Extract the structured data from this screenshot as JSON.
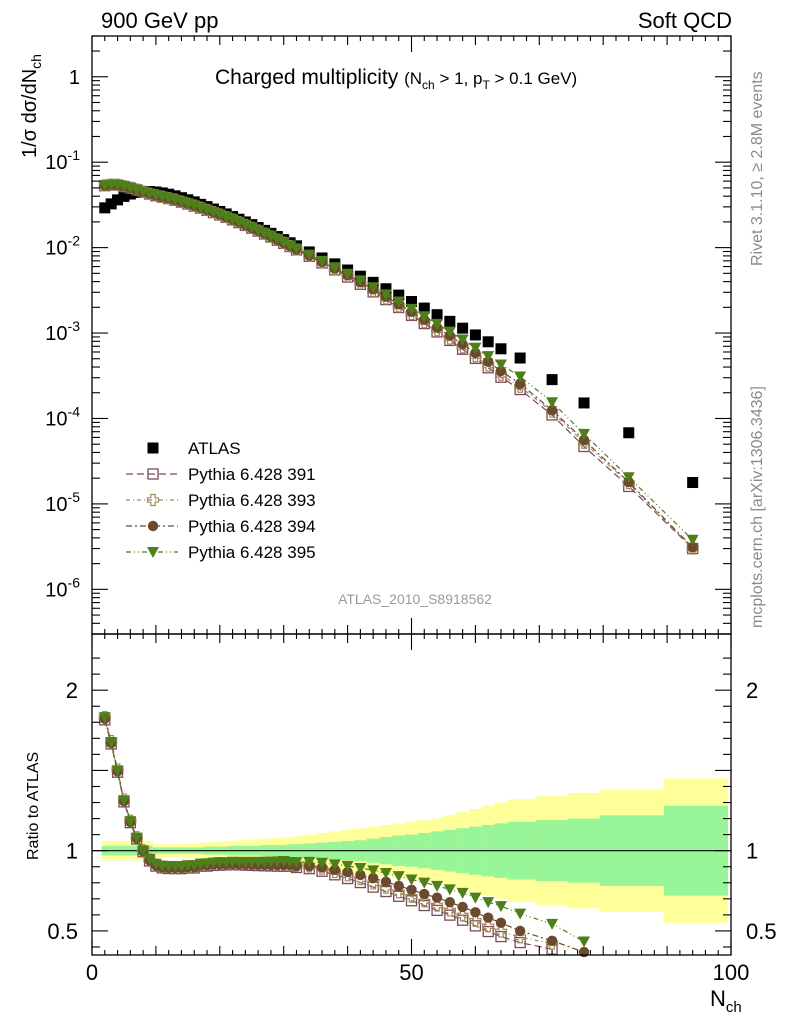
{
  "header": {
    "left_label": "900 GeV pp",
    "right_label": "Soft QCD"
  },
  "side_labels": {
    "top": "Rivet 3.1.10, ≥ 2.8M events",
    "bottom": "mcplots.cern.ch [arXiv:1306.3436]"
  },
  "chart_data": [
    {
      "type": "scatter",
      "panel": "main",
      "title": "Charged multiplicity",
      "title_detail": "(N_ch > 1, p_T > 0.1 GeV)",
      "xlabel": "N_ch",
      "ylabel": "1/σ dσ/dN_ch",
      "xlim": [
        0,
        100
      ],
      "ylim": [
        3e-07,
        3
      ],
      "yscale": "log",
      "y_tick_labels": [
        "10^-6",
        "10^-5",
        "10^-4",
        "10^-3",
        "10^-2",
        "10^-1",
        "1"
      ],
      "watermark": "ATLAS_2010_S8918562",
      "legend_position": "lower-left",
      "series": [
        {
          "name": "ATLAS",
          "marker": "filled-square",
          "color": "#000000",
          "x": [
            2,
            3,
            4,
            5,
            6,
            7,
            8,
            9,
            10,
            11,
            12,
            13,
            14,
            15,
            16,
            17,
            18,
            19,
            20,
            21,
            22,
            23,
            24,
            25,
            26,
            27,
            28,
            29,
            30,
            31,
            32,
            34,
            36,
            38,
            40,
            42,
            44,
            46,
            48,
            50,
            52,
            54,
            56,
            58,
            60,
            62,
            64,
            67,
            72,
            77,
            84,
            94
          ],
          "y": [
            0.0292,
            0.0325,
            0.0362,
            0.0398,
            0.0424,
            0.0442,
            0.0451,
            0.0453,
            0.0448,
            0.0437,
            0.0422,
            0.0404,
            0.0384,
            0.0363,
            0.0343,
            0.0321,
            0.0302,
            0.0283,
            0.0265,
            0.0248,
            0.0231,
            0.0215,
            0.02,
            0.0186,
            0.0172,
            0.0159,
            0.0147,
            0.0135,
            0.0124,
            0.0114,
            0.0105,
            0.0089,
            0.00757,
            0.00645,
            0.00547,
            0.00463,
            0.00392,
            0.0033,
            0.00278,
            0.00234,
            0.00196,
            0.00164,
            0.00137,
            0.00114,
            0.00095,
            0.00079,
            0.000654,
            0.00051,
            0.000285,
            0.000152,
            6.8e-05,
            1.78e-05
          ]
        },
        {
          "name": "Pythia 6.428 391",
          "marker": "open-square",
          "color": "#7b4a5a",
          "x": [
            2,
            3,
            4,
            5,
            6,
            7,
            8,
            9,
            10,
            11,
            12,
            13,
            14,
            15,
            16,
            17,
            18,
            19,
            20,
            21,
            22,
            23,
            24,
            25,
            26,
            27,
            28,
            29,
            30,
            31,
            32,
            34,
            36,
            38,
            40,
            42,
            44,
            46,
            48,
            50,
            52,
            54,
            56,
            58,
            60,
            62,
            64,
            67,
            72,
            77,
            84,
            94
          ],
          "y": [
            0.053,
            0.0541,
            0.0539,
            0.0519,
            0.0498,
            0.0474,
            0.0448,
            0.0424,
            0.0405,
            0.039,
            0.0375,
            0.0359,
            0.0341,
            0.0324,
            0.0306,
            0.029,
            0.0273,
            0.0257,
            0.0241,
            0.0226,
            0.0211,
            0.0196,
            0.0182,
            0.0169,
            0.0156,
            0.0144,
            0.0133,
            0.0122,
            0.0112,
            0.0103,
            0.0094,
            0.0079,
            0.0066,
            0.00548,
            0.00452,
            0.00371,
            0.00303,
            0.00246,
            0.00199,
            0.00161,
            0.00129,
            0.00103,
            0.00082,
            0.000646,
            0.000505,
            0.000392,
            0.000304,
            0.000218,
            0.00011,
            4.7e-05,
            1.6e-05,
            3e-06
          ]
        },
        {
          "name": "Pythia 6.428 393",
          "marker": "open-cross",
          "color": "#a08a55",
          "x": [
            2,
            3,
            4,
            5,
            6,
            7,
            8,
            9,
            10,
            11,
            12,
            13,
            14,
            15,
            16,
            17,
            18,
            19,
            20,
            21,
            22,
            23,
            24,
            25,
            26,
            27,
            28,
            29,
            30,
            31,
            32,
            34,
            36,
            38,
            40,
            42,
            44,
            46,
            48,
            50,
            52,
            54,
            56,
            58,
            60,
            62,
            64,
            67,
            72,
            77,
            84,
            94
          ],
          "y": [
            0.0535,
            0.0547,
            0.0545,
            0.0525,
            0.0503,
            0.0479,
            0.0452,
            0.0428,
            0.0409,
            0.0394,
            0.0379,
            0.0363,
            0.0345,
            0.0327,
            0.031,
            0.0293,
            0.0276,
            0.026,
            0.0244,
            0.0228,
            0.0213,
            0.0198,
            0.0184,
            0.0171,
            0.0158,
            0.0146,
            0.0135,
            0.0124,
            0.0114,
            0.0104,
            0.00952,
            0.00803,
            0.00672,
            0.00559,
            0.00463,
            0.00381,
            0.00312,
            0.00254,
            0.00206,
            0.00167,
            0.00134,
            0.00108,
            0.00086,
            0.00068,
            0.000535,
            0.000418,
            0.000325,
            0.000235,
            0.00012,
            5.2e-05,
            1.75e-05,
            3e-06
          ]
        },
        {
          "name": "Pythia 6.428 394",
          "marker": "filled-circle",
          "color": "#6b4a2f",
          "x": [
            2,
            3,
            4,
            5,
            6,
            7,
            8,
            9,
            10,
            11,
            12,
            13,
            14,
            15,
            16,
            17,
            18,
            19,
            20,
            21,
            22,
            23,
            24,
            25,
            26,
            27,
            28,
            29,
            30,
            31,
            32,
            34,
            36,
            38,
            40,
            42,
            44,
            46,
            48,
            50,
            52,
            54,
            56,
            58,
            60,
            62,
            64,
            67,
            72,
            77,
            84,
            94
          ],
          "y": [
            0.0532,
            0.0543,
            0.0541,
            0.0521,
            0.05,
            0.0476,
            0.045,
            0.0426,
            0.0407,
            0.0392,
            0.0377,
            0.0361,
            0.0343,
            0.0326,
            0.0308,
            0.0292,
            0.0275,
            0.0259,
            0.0243,
            0.0227,
            0.0212,
            0.0197,
            0.0183,
            0.017,
            0.0157,
            0.0145,
            0.0134,
            0.0123,
            0.0113,
            0.0104,
            0.0095,
            0.00805,
            0.00678,
            0.00568,
            0.00474,
            0.00393,
            0.00325,
            0.00266,
            0.00217,
            0.00177,
            0.00143,
            0.00116,
            0.00093,
            0.00074,
            0.000585,
            0.00046,
            0.00036,
            0.000255,
            0.000125,
            5.6e-05,
            1.8e-05,
            3.1e-06
          ]
        },
        {
          "name": "Pythia 6.428 395",
          "marker": "filled-triangle-down",
          "color": "#4f7f1a",
          "x": [
            2,
            3,
            4,
            5,
            6,
            7,
            8,
            9,
            10,
            11,
            12,
            13,
            14,
            15,
            16,
            17,
            18,
            19,
            20,
            21,
            22,
            23,
            24,
            25,
            26,
            27,
            28,
            29,
            30,
            31,
            32,
            34,
            36,
            38,
            40,
            42,
            44,
            46,
            48,
            50,
            52,
            54,
            56,
            58,
            60,
            62,
            64,
            67,
            72,
            77,
            84,
            94
          ],
          "y": [
            0.0535,
            0.0545,
            0.0543,
            0.0523,
            0.0502,
            0.0478,
            0.0452,
            0.043,
            0.0411,
            0.0396,
            0.0381,
            0.0365,
            0.0347,
            0.033,
            0.0312,
            0.0295,
            0.0278,
            0.0262,
            0.0246,
            0.023,
            0.0215,
            0.02,
            0.0186,
            0.0173,
            0.016,
            0.0148,
            0.0137,
            0.0126,
            0.0116,
            0.0106,
            0.00975,
            0.00828,
            0.007,
            0.0059,
            0.00495,
            0.00413,
            0.00344,
            0.00284,
            0.00234,
            0.00192,
            0.00157,
            0.00128,
            0.00104,
            0.00084,
            0.000672,
            0.000537,
            0.000428,
            0.00031,
            0.000155,
            6.6e-05,
            2.05e-05,
            3.8e-06
          ]
        }
      ]
    },
    {
      "type": "scatter",
      "panel": "ratio",
      "xlabel": "N_ch",
      "ylabel": "Ratio to ATLAS",
      "xlim": [
        0,
        100
      ],
      "ylim": [
        0.35,
        2.35
      ],
      "x_tick_labels": [
        "0",
        "50",
        "100"
      ],
      "y_tick_labels": [
        "0.5",
        "1",
        "2"
      ],
      "reference_line": 1,
      "uncertainty_bands": {
        "stat_color": "#98f598",
        "total_color": "#ffff99",
        "bin_edges": [
          1.5,
          9.5,
          10.5,
          11.5,
          12.5,
          13.5,
          14.5,
          15.5,
          16.5,
          17.5,
          18.5,
          19.5,
          20.5,
          21.5,
          22.5,
          23.5,
          24.5,
          25.5,
          26.5,
          27.5,
          28.5,
          29.5,
          30.5,
          31.5,
          33,
          35,
          37,
          39,
          41,
          43,
          45,
          47,
          49,
          51,
          53,
          55,
          57,
          59,
          61,
          63,
          65,
          69.5,
          74.5,
          79.5,
          89.5,
          99.5
        ],
        "stat_half_width": [
          0.03,
          0.02,
          0.02,
          0.02,
          0.02,
          0.02,
          0.02,
          0.02,
          0.02,
          0.025,
          0.025,
          0.025,
          0.025,
          0.03,
          0.03,
          0.03,
          0.03,
          0.03,
          0.035,
          0.035,
          0.035,
          0.035,
          0.04,
          0.04,
          0.045,
          0.05,
          0.055,
          0.06,
          0.065,
          0.075,
          0.085,
          0.095,
          0.1,
          0.11,
          0.12,
          0.13,
          0.14,
          0.15,
          0.16,
          0.17,
          0.18,
          0.19,
          0.2,
          0.22,
          0.28,
          0.46
        ],
        "total_half_width": [
          0.06,
          0.04,
          0.04,
          0.04,
          0.04,
          0.04,
          0.045,
          0.045,
          0.05,
          0.05,
          0.055,
          0.055,
          0.06,
          0.06,
          0.065,
          0.065,
          0.07,
          0.07,
          0.075,
          0.075,
          0.08,
          0.08,
          0.085,
          0.09,
          0.1,
          0.11,
          0.12,
          0.13,
          0.14,
          0.15,
          0.16,
          0.17,
          0.18,
          0.19,
          0.2,
          0.22,
          0.24,
          0.26,
          0.28,
          0.3,
          0.32,
          0.34,
          0.36,
          0.38,
          0.45,
          0.84
        ]
      }
    }
  ]
}
